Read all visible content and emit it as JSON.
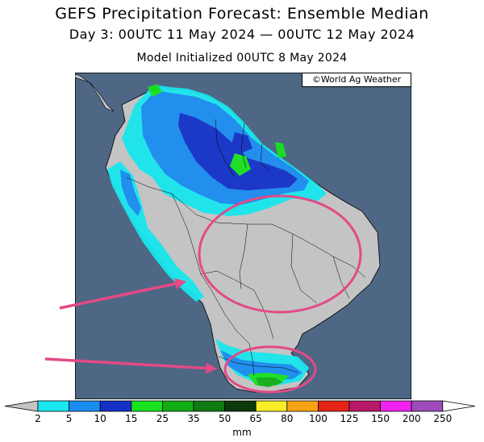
{
  "title": "GEFS Precipitation Forecast: Ensemble Median",
  "subtitle": "Day 3: 00UTC 11 May 2024 — 00UTC 12 May 2024",
  "init": "Model Initialized 00UTC 8 May 2024",
  "credit": "©World Ag Weather",
  "colors": {
    "ocean": "#4e6785",
    "land": "#c4c4c4",
    "annotation": "#e34a86"
  },
  "legend": {
    "units": "mm",
    "ticks": [
      "2",
      "5",
      "10",
      "15",
      "25",
      "35",
      "50",
      "65",
      "80",
      "100",
      "125",
      "150",
      "200",
      "250"
    ],
    "bins": [
      {
        "label": "2-5",
        "color": "#19e6ee"
      },
      {
        "label": "5-10",
        "color": "#1a8cf0"
      },
      {
        "label": "10-15",
        "color": "#1431c8"
      },
      {
        "label": "15-25",
        "color": "#18e21e"
      },
      {
        "label": "25-35",
        "color": "#13ad17"
      },
      {
        "label": "35-50",
        "color": "#0f7a14"
      },
      {
        "label": "50-65",
        "color": "#0b3a0c"
      },
      {
        "label": "65-80",
        "color": "#f7ee27"
      },
      {
        "label": "80-100",
        "color": "#f7a316"
      },
      {
        "label": "100-125",
        "color": "#e42417"
      },
      {
        "label": "125-150",
        "color": "#b8186a"
      },
      {
        "label": "150-200",
        "color": "#ef22ef"
      },
      {
        "label": "200-250",
        "color": "#9e4cbc"
      }
    ]
  }
}
